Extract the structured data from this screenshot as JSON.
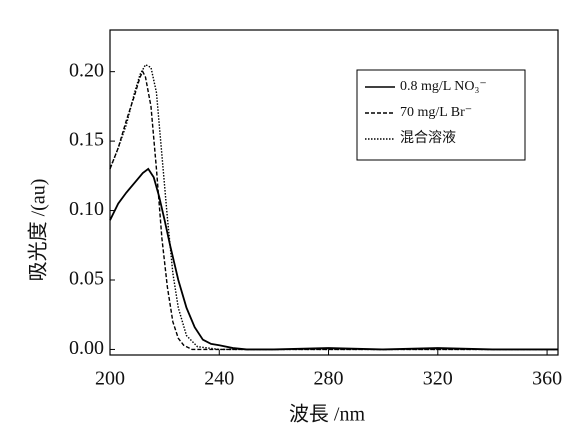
{
  "chart_data": {
    "type": "line",
    "x_label": "波長 /nm",
    "y_label": "吸光度 /(au)",
    "xlim": [
      200,
      364
    ],
    "ylim": [
      -0.004,
      0.23
    ],
    "xticks": [
      200,
      240,
      280,
      320,
      360
    ],
    "yticks": [
      {
        "value": 0,
        "label": "0.00"
      },
      {
        "value": 0.05,
        "label": "0.05"
      },
      {
        "value": 0.1,
        "label": "0.10"
      },
      {
        "value": 0.15,
        "label": "0.15"
      },
      {
        "value": 0.2,
        "label": "0.20"
      }
    ],
    "legend": "upper right",
    "series": [
      {
        "name": "0.8 mg/L NO₃⁻",
        "color": "#000000",
        "style": "solid",
        "x": [
          200,
          203,
          206,
          209,
          212,
          214,
          216,
          218,
          220,
          222,
          225,
          228,
          231,
          234,
          237,
          240,
          245,
          250,
          260,
          280,
          300,
          320,
          340,
          364
        ],
        "values": [
          0.093,
          0.105,
          0.113,
          0.12,
          0.127,
          0.13,
          0.124,
          0.11,
          0.093,
          0.075,
          0.05,
          0.03,
          0.016,
          0.007,
          0.004,
          0.003,
          0.001,
          0,
          0,
          0.001,
          0,
          0.001,
          0,
          0
        ]
      },
      {
        "name": "70 mg/L Br⁻",
        "color": "#000000",
        "style": "dashed",
        "x": [
          200,
          203,
          206,
          209,
          211,
          212,
          213,
          215,
          217,
          219,
          221,
          223,
          225,
          227,
          230,
          240,
          280,
          320,
          364
        ],
        "values": [
          0.13,
          0.145,
          0.165,
          0.183,
          0.196,
          0.2,
          0.196,
          0.175,
          0.13,
          0.08,
          0.045,
          0.02,
          0.008,
          0.003,
          0,
          0,
          0,
          0,
          0
        ]
      },
      {
        "name": "混合溶液",
        "color": "#000000",
        "style": "dotted",
        "x": [
          200,
          203,
          206,
          209,
          211,
          213,
          215,
          217,
          219,
          221,
          223,
          225,
          228,
          232,
          240,
          280,
          320,
          364
        ],
        "values": [
          0.13,
          0.145,
          0.162,
          0.185,
          0.198,
          0.205,
          0.203,
          0.185,
          0.14,
          0.095,
          0.055,
          0.03,
          0.01,
          0.002,
          0,
          0,
          0,
          0
        ]
      }
    ]
  }
}
